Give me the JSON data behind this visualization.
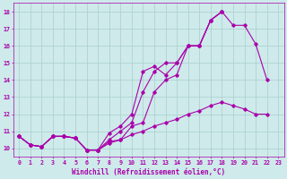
{
  "xlabel": "Windchill (Refroidissement éolien,°C)",
  "background_color": "#ceeaea",
  "grid_color": "#aacece",
  "line_color": "#aa00aa",
  "x_data": [
    0,
    1,
    2,
    3,
    4,
    5,
    6,
    7,
    8,
    9,
    10,
    11,
    12,
    13,
    14,
    15,
    16,
    17,
    18,
    19,
    20,
    21,
    22,
    23
  ],
  "series": [
    [
      10.7,
      10.2,
      10.1,
      10.7,
      10.7,
      10.6,
      9.9,
      9.9,
      10.4,
      10.5,
      11.3,
      11.5,
      13.3,
      14.0,
      14.3,
      16.0,
      16.0,
      17.5,
      18.0,
      17.2,
      17.2,
      16.1,
      14.0,
      null
    ],
    [
      10.7,
      10.2,
      10.1,
      10.7,
      10.7,
      10.6,
      9.9,
      9.9,
      10.5,
      11.0,
      11.5,
      13.3,
      14.5,
      15.0,
      15.0,
      16.0,
      16.0,
      17.5,
      18.0,
      null,
      null,
      null,
      null,
      null
    ],
    [
      10.7,
      10.2,
      10.1,
      10.7,
      10.7,
      10.6,
      9.9,
      9.9,
      10.9,
      11.3,
      12.0,
      14.5,
      14.8,
      14.3,
      15.0,
      16.0,
      16.0,
      17.5,
      18.0,
      null,
      null,
      null,
      null,
      null
    ],
    [
      10.7,
      10.2,
      10.1,
      10.7,
      10.7,
      10.6,
      9.9,
      9.9,
      10.3,
      10.5,
      10.8,
      11.0,
      11.3,
      11.5,
      11.7,
      12.0,
      12.2,
      12.5,
      12.7,
      12.5,
      12.3,
      12.0,
      12.0,
      null
    ]
  ],
  "ylim": [
    9.5,
    18.5
  ],
  "xlim": [
    -0.5,
    23.5
  ],
  "yticks": [
    10,
    11,
    12,
    13,
    14,
    15,
    16,
    17,
    18
  ],
  "xticks": [
    0,
    1,
    2,
    3,
    4,
    5,
    6,
    7,
    8,
    9,
    10,
    11,
    12,
    13,
    14,
    15,
    16,
    17,
    18,
    19,
    20,
    21,
    22,
    23
  ],
  "xlabel_fontsize": 5.5,
  "tick_fontsize": 4.8
}
